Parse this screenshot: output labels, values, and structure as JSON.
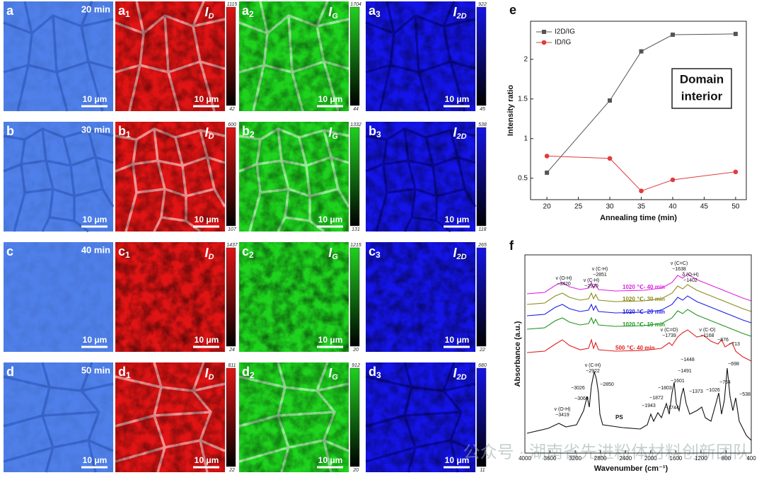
{
  "panels": {
    "scale_bar": "10 μm",
    "rows": [
      {
        "letter": "a",
        "time": "20 min",
        "maps": [
          {
            "subscript": "1",
            "symbol": "I",
            "channel": "D",
            "max": 1115,
            "min": 42,
            "color": "#e01414"
          },
          {
            "subscript": "2",
            "symbol": "I",
            "channel": "G",
            "max": 1704,
            "min": 44,
            "color": "#1ed21e"
          },
          {
            "subscript": "3",
            "symbol": "I",
            "channel": "2D",
            "max": 922,
            "min": 45,
            "color": "#1414e6"
          }
        ]
      },
      {
        "letter": "b",
        "time": "30 min",
        "maps": [
          {
            "subscript": "1",
            "symbol": "I",
            "channel": "D",
            "max": 600,
            "min": 107,
            "color": "#e01414"
          },
          {
            "subscript": "2",
            "symbol": "I",
            "channel": "G",
            "max": 1332,
            "min": 131,
            "color": "#1ed21e"
          },
          {
            "subscript": "3",
            "symbol": "I",
            "channel": "2D",
            "max": 538,
            "min": 118,
            "color": "#1414e6"
          }
        ]
      },
      {
        "letter": "c",
        "time": "40 min",
        "maps": [
          {
            "subscript": "1",
            "symbol": "I",
            "channel": "D",
            "max": 1437,
            "min": 24,
            "color": "#e01414"
          },
          {
            "subscript": "2",
            "symbol": "I",
            "channel": "G",
            "max": 1215,
            "min": 20,
            "color": "#1ed21e"
          },
          {
            "subscript": "3",
            "symbol": "I",
            "channel": "2D",
            "max": 265,
            "min": 22,
            "color": "#1414e6"
          }
        ]
      },
      {
        "letter": "d",
        "time": "50 min",
        "maps": [
          {
            "subscript": "1",
            "symbol": "I",
            "channel": "D",
            "max": 811,
            "min": 22,
            "color": "#e01414"
          },
          {
            "subscript": "2",
            "symbol": "I",
            "channel": "G",
            "max": 912,
            "min": 20,
            "color": "#1ed21e"
          },
          {
            "subscript": "3",
            "symbol": "I",
            "channel": "2D",
            "max": 680,
            "min": 11,
            "color": "#1414e6"
          }
        ]
      }
    ]
  },
  "chart_data": [
    {
      "type": "line",
      "panel_label": "e",
      "x": [
        20,
        30,
        35,
        40,
        50
      ],
      "series": [
        {
          "name": "I2D/IG",
          "color": "#555555",
          "marker": "square",
          "values": [
            0.57,
            1.48,
            2.1,
            2.31,
            2.32
          ]
        },
        {
          "name": "ID/IG",
          "color": "#e03c3c",
          "marker": "circle",
          "values": [
            0.78,
            0.75,
            0.34,
            0.48,
            0.58
          ]
        }
      ],
      "xlim": [
        17.4,
        51.7
      ],
      "xticks": [
        20,
        25,
        30,
        35,
        40,
        45,
        50
      ],
      "ylim": [
        0.23,
        2.48
      ],
      "yticks": [
        0.5,
        1.0,
        1.5,
        2.0
      ],
      "xlabel": "Annealing time (min)",
      "ylabel": "Intensity ratio",
      "annotation": [
        "Domain",
        "interior"
      ],
      "legend": "upper left"
    },
    {
      "type": "spectrum",
      "panel_label": "f",
      "xlim": [
        4000,
        400
      ],
      "xticks": [
        4000,
        3600,
        3200,
        2800,
        2400,
        2000,
        1600,
        1200,
        800,
        400
      ],
      "xlabel": "Wavenumber (cm⁻¹)",
      "ylabel": "Absorbance (a.u.)",
      "series": [
        {
          "name": "1020 ℃- 40 min",
          "color": "#e020e0"
        },
        {
          "name": "1020 ℃- 30 min",
          "color": "#8c8c1e"
        },
        {
          "name": "1020 ℃- 20 min",
          "color": "#1e1ee6"
        },
        {
          "name": "1020 ℃- 10 min",
          "color": "#1e961e"
        },
        {
          "name": "500 ℃- 40 min",
          "color": "#e01e1e"
        },
        {
          "name": "PS",
          "color": "#111111"
        }
      ],
      "annotations": [
        "v (O-H)",
        "~3420",
        "v (C-H)",
        "~2851",
        "v (C-H)",
        "~2920",
        "v (C=C)",
        "~1638",
        "δ (O-H)",
        "~1402",
        "v (C=O)",
        "~1739",
        "v (C-O)",
        "~1168",
        "~876",
        "~713",
        "v (C-H)",
        "~2922",
        "~3026",
        "~3060",
        "~2850",
        "~1943",
        "~1872",
        "~1803",
        "~1744",
        "~1601",
        "~1491",
        "~1448",
        "~1373",
        "~1026",
        "~754",
        "~698",
        "~538",
        "v (O-H)",
        "~3419"
      ]
    }
  ],
  "watermark": "公众号 · 湖南省先进粉体材料创新团队"
}
